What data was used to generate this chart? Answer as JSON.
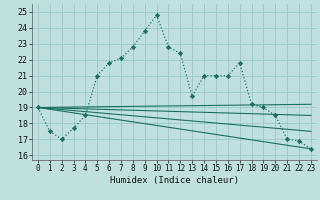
{
  "xlabel": "Humidex (Indice chaleur)",
  "background_color": "#c0e0e0",
  "grid_color": "#98c8c8",
  "line_color": "#1a7060",
  "xlim": [
    -0.5,
    23.5
  ],
  "ylim": [
    15.7,
    25.5
  ],
  "yticks": [
    16,
    17,
    18,
    19,
    20,
    21,
    22,
    23,
    24,
    25
  ],
  "xticks": [
    0,
    1,
    2,
    3,
    4,
    5,
    6,
    7,
    8,
    9,
    10,
    11,
    12,
    13,
    14,
    15,
    16,
    17,
    18,
    19,
    20,
    21,
    22,
    23
  ],
  "main_line_x": [
    0,
    1,
    2,
    3,
    4,
    5,
    6,
    7,
    8,
    9,
    10,
    11,
    12,
    13,
    14,
    15,
    16,
    17,
    18,
    19,
    20,
    21,
    22,
    23
  ],
  "main_line_y": [
    19.0,
    17.5,
    17.0,
    17.7,
    18.5,
    21.0,
    21.8,
    22.1,
    22.8,
    23.8,
    24.8,
    22.8,
    22.4,
    19.7,
    21.0,
    21.0,
    21.0,
    21.8,
    19.2,
    19.0,
    18.5,
    17.0,
    16.9,
    16.4
  ],
  "aux_lines": [
    {
      "x": [
        0,
        23
      ],
      "y": [
        19.0,
        19.2
      ]
    },
    {
      "x": [
        0,
        23
      ],
      "y": [
        19.0,
        18.5
      ]
    },
    {
      "x": [
        0,
        23
      ],
      "y": [
        19.0,
        17.5
      ]
    },
    {
      "x": [
        0,
        23
      ],
      "y": [
        19.0,
        16.4
      ]
    }
  ]
}
